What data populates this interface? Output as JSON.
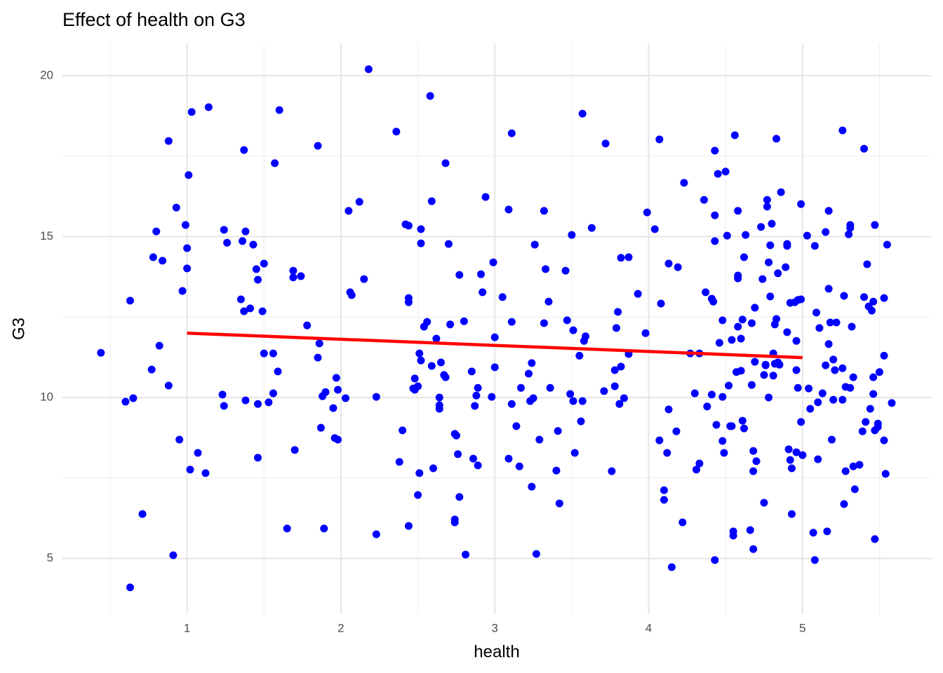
{
  "chart_data": {
    "type": "scatter",
    "title": "Effect of health on G3",
    "x_label": "health",
    "y_label": "G3",
    "xlim": [
      0.19,
      5.84
    ],
    "ylim": [
      3.27,
      21.0
    ],
    "xticks": [
      1,
      2,
      3,
      4,
      5
    ],
    "yticks": [
      5,
      10,
      15,
      20
    ],
    "x_minor_ticks": [
      0.5,
      1.5,
      2.5,
      3.5,
      4.5,
      5.5
    ],
    "y_minor_ticks": [
      7.5,
      12.5,
      17.5
    ],
    "grid": true,
    "color": "#0000ff",
    "x": [
      0.44,
      0.6,
      0.63,
      0.65,
      0.63,
      0.71,
      0.77,
      0.78,
      0.8,
      0.82,
      0.84,
      0.88,
      0.88,
      0.91,
      0.93,
      0.95,
      0.97,
      0.99,
      1.0,
      1.0,
      1.01,
      1.02,
      1.03,
      1.07,
      1.12,
      1.14,
      1.23,
      1.24,
      1.24,
      1.26,
      1.35,
      1.36,
      1.37,
      1.37,
      1.38,
      1.38,
      1.41,
      1.43,
      1.45,
      1.46,
      1.46,
      1.46,
      1.49,
      1.5,
      1.5,
      1.53,
      1.56,
      1.56,
      1.57,
      1.59,
      1.6,
      1.65,
      1.69,
      1.69,
      1.7,
      1.74,
      1.78,
      1.85,
      1.85,
      1.86,
      1.87,
      1.88,
      1.89,
      1.9,
      1.95,
      1.96,
      1.97,
      1.98,
      1.98,
      2.03,
      2.05,
      2.06,
      2.07,
      2.12,
      2.15,
      2.18,
      2.23,
      2.23,
      2.36,
      2.38,
      2.4,
      2.42,
      2.44,
      2.44,
      2.44,
      2.44,
      2.47,
      2.48,
      2.48,
      2.5,
      2.5,
      2.51,
      2.51,
      2.52,
      2.52,
      2.52,
      2.54,
      2.56,
      2.58,
      2.59,
      2.59,
      2.6,
      2.62,
      2.64,
      2.64,
      2.64,
      2.65,
      2.67,
      2.68,
      2.68,
      2.7,
      2.71,
      2.74,
      2.74,
      2.74,
      2.75,
      2.76,
      2.77,
      2.77,
      2.8,
      2.81,
      2.85,
      2.86,
      2.87,
      2.88,
      2.89,
      2.89,
      2.91,
      2.92,
      2.94,
      2.98,
      2.99,
      3.0,
      3.0,
      3.05,
      3.09,
      3.09,
      3.11,
      3.11,
      3.11,
      3.14,
      3.16,
      3.17,
      3.22,
      3.23,
      3.24,
      3.24,
      3.25,
      3.26,
      3.27,
      3.29,
      3.32,
      3.32,
      3.33,
      3.35,
      3.36,
      3.4,
      3.41,
      3.42,
      3.46,
      3.47,
      3.49,
      3.5,
      3.51,
      3.51,
      3.52,
      3.55,
      3.56,
      3.57,
      3.57,
      3.58,
      3.59,
      3.63,
      3.71,
      3.72,
      3.76,
      3.78,
      3.78,
      3.79,
      3.8,
      3.81,
      3.82,
      3.82,
      3.84,
      3.87,
      3.87,
      3.93,
      3.98,
      3.99,
      4.04,
      4.07,
      4.07,
      4.08,
      4.1,
      4.1,
      4.12,
      4.13,
      4.13,
      4.15,
      4.18,
      4.19,
      4.22,
      4.23,
      4.27,
      4.3,
      4.31,
      4.33,
      4.33,
      4.36,
      4.37,
      4.38,
      4.41,
      4.41,
      4.42,
      4.43,
      4.43,
      4.43,
      4.43,
      4.44,
      4.45,
      4.46,
      4.48,
      4.48,
      4.48,
      4.49,
      4.5,
      4.51,
      4.52,
      4.53,
      4.54,
      4.54,
      4.55,
      4.55,
      4.56,
      4.57,
      4.58,
      4.58,
      4.58,
      4.58,
      4.6,
      4.6,
      4.61,
      4.61,
      4.62,
      4.62,
      4.63,
      4.66,
      4.67,
      4.67,
      4.68,
      4.68,
      4.68,
      4.69,
      4.69,
      4.7,
      4.73,
      4.74,
      4.75,
      4.75,
      4.76,
      4.76,
      4.77,
      4.77,
      4.78,
      4.78,
      4.79,
      4.79,
      4.8,
      4.81,
      4.81,
      4.82,
      4.82,
      4.83,
      4.83,
      4.84,
      4.84,
      4.85,
      4.86,
      4.89,
      4.9,
      4.9,
      4.9,
      4.91,
      4.92,
      4.92,
      4.93,
      4.93,
      4.95,
      4.96,
      4.96,
      4.96,
      4.97,
      4.97,
      4.99,
      4.99,
      4.99,
      5.0,
      5.03,
      5.04,
      5.05,
      5.07,
      5.08,
      5.08,
      5.09,
      5.1,
      5.1,
      5.11,
      5.13,
      5.15,
      5.15,
      5.16,
      5.17,
      5.17,
      5.17,
      5.18,
      5.19,
      5.2,
      5.2,
      5.21,
      5.22,
      5.26,
      5.26,
      5.26,
      5.27,
      5.27,
      5.28,
      5.28,
      5.3,
      5.31,
      5.31,
      5.31,
      5.32,
      5.33,
      5.33,
      5.34,
      5.37,
      5.39,
      5.4,
      5.4,
      5.41,
      5.42,
      5.43,
      5.44,
      5.45,
      5.46,
      5.46,
      5.46,
      5.47,
      5.47,
      5.47,
      5.49,
      5.49,
      5.5,
      5.53,
      5.53,
      5.53,
      5.54,
      5.55,
      5.58
    ],
    "values": [
      11.39,
      9.87,
      13.01,
      9.98,
      4.1,
      6.38,
      10.87,
      14.36,
      15.16,
      11.61,
      14.25,
      17.97,
      10.37,
      5.1,
      15.9,
      8.69,
      13.31,
      15.36,
      14.64,
      14.01,
      16.91,
      7.76,
      18.87,
      8.28,
      7.65,
      19.02,
      10.09,
      15.21,
      9.74,
      14.81,
      13.05,
      14.86,
      12.68,
      17.69,
      9.91,
      15.16,
      12.77,
      14.75,
      13.99,
      9.8,
      13.66,
      8.13,
      12.68,
      14.16,
      11.37,
      9.85,
      10.13,
      11.37,
      17.28,
      10.81,
      18.93,
      5.93,
      13.94,
      13.73,
      8.37,
      13.77,
      12.24,
      17.82,
      11.24,
      11.68,
      9.06,
      10.04,
      5.93,
      10.17,
      9.67,
      8.74,
      10.61,
      8.69,
      10.24,
      9.98,
      15.8,
      13.27,
      13.18,
      16.08,
      13.68,
      20.2,
      10.02,
      5.75,
      18.26,
      8.0,
      8.98,
      15.38,
      13.09,
      15.34,
      12.96,
      6.01,
      10.28,
      10.59,
      10.24,
      10.35,
      6.97,
      7.65,
      11.37,
      11.15,
      14.79,
      15.23,
      12.2,
      12.35,
      19.37,
      16.1,
      10.98,
      7.8,
      11.83,
      10.0,
      9.76,
      9.65,
      11.09,
      10.7,
      17.28,
      10.63,
      14.77,
      12.27,
      6.21,
      6.12,
      8.87,
      8.82,
      8.24,
      6.91,
      13.81,
      12.37,
      5.12,
      10.81,
      8.1,
      9.74,
      10.06,
      10.3,
      7.89,
      13.83,
      13.27,
      16.23,
      10.02,
      14.2,
      11.87,
      10.94,
      13.12,
      8.1,
      15.84,
      9.8,
      18.21,
      12.35,
      9.11,
      7.86,
      10.3,
      10.74,
      9.89,
      11.07,
      7.23,
      9.98,
      14.75,
      5.14,
      8.69,
      15.8,
      12.31,
      13.99,
      12.98,
      10.3,
      7.73,
      8.96,
      6.71,
      13.94,
      12.4,
      10.11,
      15.05,
      12.09,
      9.89,
      8.28,
      11.3,
      9.26,
      9.89,
      18.82,
      11.76,
      11.9,
      15.27,
      10.2,
      17.89,
      7.71,
      10.35,
      10.85,
      12.16,
      12.66,
      9.8,
      10.96,
      14.34,
      9.98,
      11.35,
      14.36,
      13.22,
      12.0,
      15.75,
      15.23,
      18.02,
      8.67,
      12.92,
      7.12,
      6.82,
      8.28,
      14.16,
      9.63,
      4.73,
      8.95,
      14.05,
      6.12,
      16.67,
      11.37,
      10.13,
      7.76,
      11.37,
      7.95,
      16.14,
      13.27,
      9.72,
      10.09,
      13.07,
      12.98,
      14.86,
      15.66,
      17.67,
      4.95,
      9.15,
      16.95,
      11.7,
      8.65,
      12.4,
      10.02,
      8.28,
      17.02,
      15.03,
      10.37,
      9.11,
      11.79,
      9.11,
      5.71,
      5.84,
      18.15,
      10.79,
      13.79,
      15.8,
      13.7,
      12.2,
      11.83,
      10.83,
      12.42,
      9.28,
      14.36,
      9.04,
      15.05,
      5.88,
      12.31,
      10.39,
      8.34,
      7.71,
      5.29,
      12.79,
      11.11,
      8.02,
      15.3,
      13.68,
      10.7,
      6.73,
      11.02,
      11.0,
      15.93,
      16.14,
      14.2,
      10.0,
      13.14,
      14.73,
      15.4,
      11.37,
      10.68,
      12.27,
      11.05,
      18.04,
      12.44,
      13.86,
      11.09,
      11.02,
      16.38,
      14.05,
      14.71,
      14.77,
      12.03,
      8.39,
      8.06,
      12.94,
      6.38,
      7.8,
      12.96,
      11.76,
      8.3,
      10.85,
      10.3,
      13.03,
      13.05,
      16.01,
      9.24,
      8.21,
      15.03,
      10.28,
      9.65,
      5.8,
      4.95,
      14.71,
      12.64,
      8.08,
      9.85,
      12.16,
      10.13,
      11.0,
      15.14,
      5.84,
      11.66,
      15.8,
      13.38,
      12.33,
      8.69,
      9.93,
      11.18,
      10.85,
      12.33,
      10.91,
      9.93,
      18.3,
      6.69,
      13.16,
      10.33,
      7.71,
      15.07,
      15.36,
      15.27,
      10.3,
      12.2,
      10.63,
      7.86,
      7.15,
      7.91,
      8.95,
      13.12,
      17.73,
      9.24,
      14.14,
      12.83,
      9.65,
      12.7,
      10.63,
      12.98,
      10.11,
      8.98,
      15.36,
      5.6,
      9.19,
      9.09,
      10.79,
      13.09,
      11.3,
      8.67,
      7.63,
      14.75,
      9.83
    ],
    "trend": {
      "x": [
        1,
        5
      ],
      "values": [
        12.0,
        11.24
      ],
      "color": "#ff0000"
    }
  }
}
